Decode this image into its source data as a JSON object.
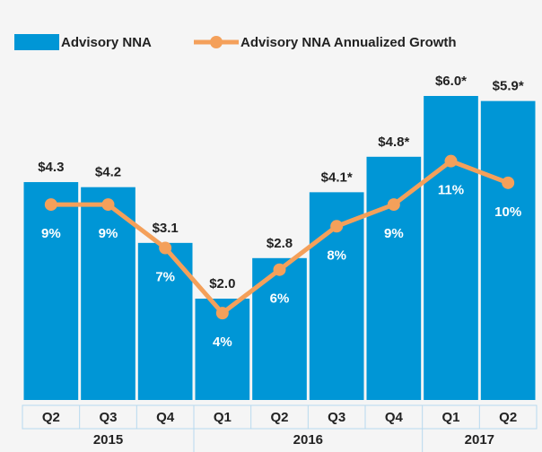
{
  "chart_data": {
    "type": "bar_line",
    "categories": [
      "Q2",
      "Q3",
      "Q4",
      "Q1",
      "Q2",
      "Q3",
      "Q4",
      "Q1",
      "Q2"
    ],
    "groups": [
      {
        "label": "2015",
        "span": 3
      },
      {
        "label": "2016",
        "span": 4
      },
      {
        "label": "2017",
        "span": 2
      }
    ],
    "series": [
      {
        "name": "Advisory NNA",
        "type": "bar",
        "color": "#0096d6",
        "values": [
          4.3,
          4.2,
          3.1,
          2.0,
          2.8,
          4.1,
          4.8,
          6.0,
          5.9
        ],
        "value_labels": [
          "$4.3",
          "$4.2",
          "$3.1",
          "$2.0",
          "$2.8",
          "$4.1*",
          "$4.8*",
          "$6.0*",
          "$5.9*"
        ]
      },
      {
        "name": "Advisory NNA Annualized Growth",
        "type": "line",
        "color": "#f4a05a",
        "axis": "y2",
        "values": [
          9,
          9,
          7,
          4,
          6,
          8,
          9,
          11,
          10
        ],
        "value_labels": [
          "9%",
          "9%",
          "7%",
          "4%",
          "6%",
          "8%",
          "9%",
          "11%",
          "10%"
        ]
      }
    ],
    "ylim": [
      0,
      6.0
    ],
    "y2lim": [
      0,
      14
    ],
    "legend": "top"
  }
}
